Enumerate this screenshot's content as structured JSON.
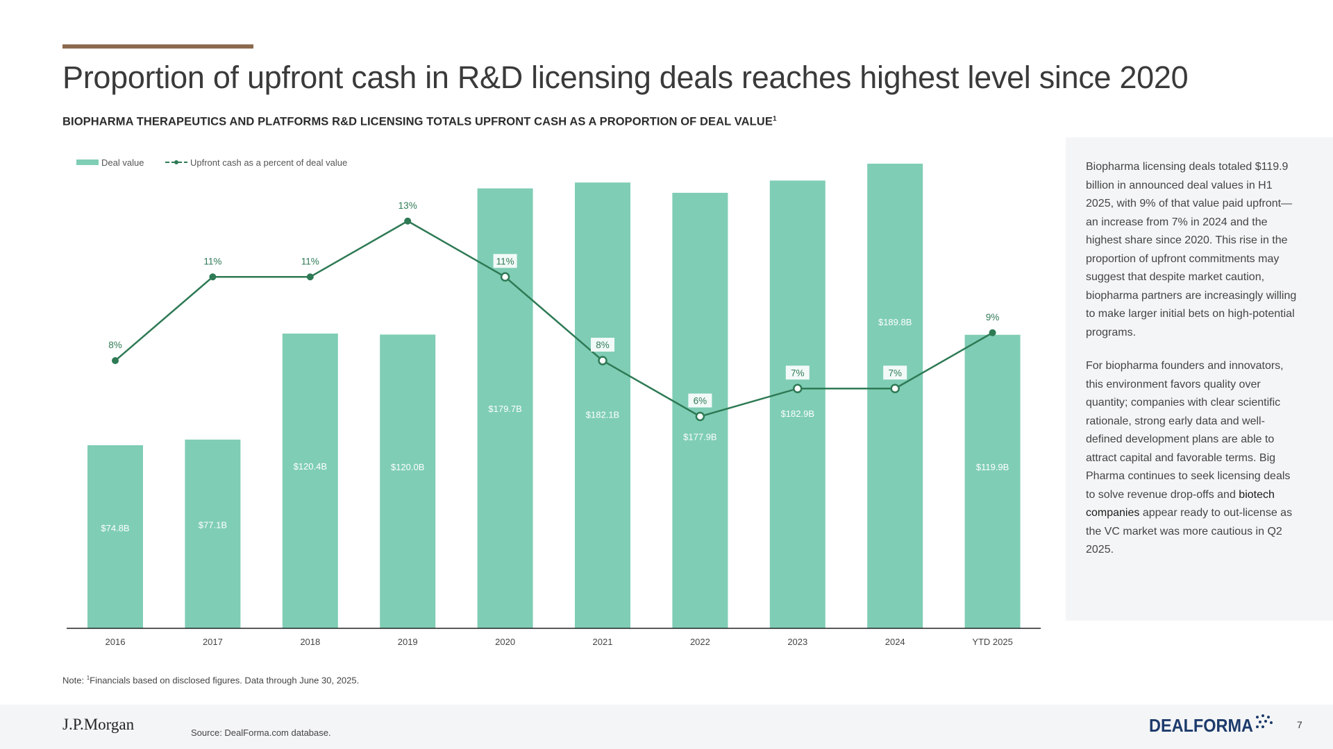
{
  "header": {
    "title": "Proportion of upfront cash in R&D licensing deals reaches highest level since 2020",
    "subtitle": "BIOPHARMA THERAPEUTICS AND PLATFORMS R&D LICENSING TOTALS  UPFRONT CASH AS A PROPORTION OF DEAL VALUE",
    "subtitle_sup": "1"
  },
  "chart_data": {
    "type": "bar",
    "title": "BIOPHARMA THERAPEUTICS AND PLATFORMS R&D LICENSING TOTALS  UPFRONT CASH AS A PROPORTION OF DEAL VALUE",
    "categories": [
      "2016",
      "2017",
      "2018",
      "2019",
      "2020",
      "2021",
      "2022",
      "2023",
      "2024",
      "YTD 2025"
    ],
    "series": [
      {
        "name": "Deal value",
        "type": "bar",
        "values": [
          74.8,
          77.1,
          120.4,
          120.0,
          179.7,
          182.1,
          177.9,
          182.9,
          189.8,
          119.9
        ],
        "labels": [
          "$74.8B",
          "$77.1B",
          "$120.4B",
          "$120.0B",
          "$179.7B",
          "$182.1B",
          "$177.9B",
          "$182.9B",
          "$189.8B",
          "$119.9B"
        ],
        "color": "#7fcdb5"
      },
      {
        "name": "Upfront cash as a percent of deal value",
        "type": "line",
        "values": [
          8,
          11,
          11,
          13,
          11,
          8,
          6,
          7,
          7,
          9
        ],
        "labels": [
          "8%",
          "11%",
          "11%",
          "13%",
          "11%",
          "8%",
          "6%",
          "7%",
          "7%",
          "9%"
        ],
        "color": "#2e7a55"
      }
    ],
    "legend": [
      "Deal value",
      "Upfront cash as a percent of deal value"
    ],
    "legend_position": "top-left",
    "xlabel": "",
    "ylabel": ""
  },
  "side_panel": {
    "paragraph1": "Biopharma licensing deals totaled $119.9 billion in announced deal values in H1 2025, with 9% of that value paid upfront—an increase from 7% in 2024 and the highest share since 2020. This rise in the proportion of upfront commitments may suggest that despite market caution, biopharma partners are increasingly willing to make larger initial bets on high-potential programs.",
    "paragraph2_a": "For biopharma founders and innovators, this environment favors quality over quantity; companies with clear scientific rationale, strong early data and well-defined development plans are able to attract capital and favorable terms. Big Pharma continues to seek licensing deals to solve revenue drop-offs and ",
    "paragraph2_b": "biotech companies",
    "paragraph2_c": " appear ready to out-license as the VC market was more cautious in Q2 2025."
  },
  "note": {
    "prefix": "Note: ",
    "sup": "1",
    "text": "Financials based on disclosed figures. Data through June 30, 2025."
  },
  "footer": {
    "brand": "J.P.Morgan",
    "source": "Source: DealForma.com database.",
    "partner_logo": "DEALFORMA",
    "page_number": "7"
  },
  "colors": {
    "accent_rule": "#8b6a4e",
    "bar": "#7fcdb5",
    "line": "#2e7a55",
    "logo_blue": "#1c3a6b"
  }
}
